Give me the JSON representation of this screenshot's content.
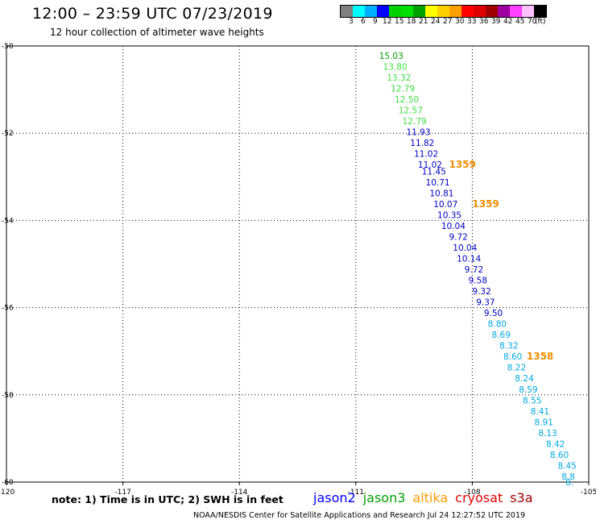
{
  "header": {
    "title": "12:00 – 23:59 UTC 07/23/2019",
    "subtitle": "12 hour collection of altimeter wave heights"
  },
  "colorbar": {
    "colors": [
      "#808080",
      "#00ffff",
      "#00b0ff",
      "#0000ff",
      "#00d000",
      "#00e000",
      "#00a000",
      "#ffff00",
      "#ffd000",
      "#ffa000",
      "#ff0000",
      "#e00000",
      "#a00000",
      "#a000a0",
      "#ff40ff",
      "#ffc0ff",
      "#000000"
    ],
    "labels": [
      "3",
      "6",
      "9",
      "12",
      "15",
      "18",
      "21",
      "24",
      "27",
      "30",
      "33",
      "36",
      "39",
      "42",
      "45",
      "70",
      "(ft)"
    ]
  },
  "chart_data": {
    "type": "scatter",
    "title": "12:00 – 23:59 UTC 07/23/2019",
    "subtitle": "12 hour collection of altimeter wave heights",
    "xlim": [
      -120,
      -105
    ],
    "ylim": [
      -60,
      -50
    ],
    "x_ticks": [
      "-120",
      "-117",
      "-114",
      "-111",
      "-108",
      "-105"
    ],
    "y_ticks": [
      "-50",
      "-52",
      "-54",
      "-56",
      "-58",
      "-60"
    ],
    "grid": true,
    "grid_style": "dotted",
    "points": [
      {
        "lon": -110.4,
        "lat": -50.22,
        "value": "15.03",
        "color": "#00a000"
      },
      {
        "lon": -110.3,
        "lat": -50.47,
        "value": "13.80",
        "color": "#40e040"
      },
      {
        "lon": -110.2,
        "lat": -50.72,
        "value": "13.32",
        "color": "#40e040"
      },
      {
        "lon": -110.1,
        "lat": -50.97,
        "value": "12.79",
        "color": "#40e040"
      },
      {
        "lon": -110.0,
        "lat": -51.22,
        "value": "12.50",
        "color": "#40e040"
      },
      {
        "lon": -109.9,
        "lat": -51.47,
        "value": "12.57",
        "color": "#40e040"
      },
      {
        "lon": -109.8,
        "lat": -51.72,
        "value": "12.79",
        "color": "#40e040"
      },
      {
        "lon": -109.7,
        "lat": -51.97,
        "value": "11.93",
        "color": "#0000c0"
      },
      {
        "lon": -109.6,
        "lat": -52.22,
        "value": "11.82",
        "color": "#0000c0"
      },
      {
        "lon": -109.5,
        "lat": -52.47,
        "value": "11.02",
        "color": "#0000c0"
      },
      {
        "lon": -109.4,
        "lat": -52.72,
        "value": "11.02",
        "color": "#0000c0"
      },
      {
        "lon": -109.3,
        "lat": -52.87,
        "value": "11.45",
        "color": "#0000c0"
      },
      {
        "lon": -109.2,
        "lat": -53.12,
        "value": "10.71",
        "color": "#0000c0"
      },
      {
        "lon": -109.1,
        "lat": -53.37,
        "value": "10.81",
        "color": "#0000c0"
      },
      {
        "lon": -109.0,
        "lat": -53.62,
        "value": "10.07",
        "color": "#0000c0"
      },
      {
        "lon": -108.9,
        "lat": -53.87,
        "value": "10.35",
        "color": "#0000c0"
      },
      {
        "lon": -108.8,
        "lat": -54.12,
        "value": "10.04",
        "color": "#0000c0"
      },
      {
        "lon": -108.6,
        "lat": -54.37,
        "value": "9.72",
        "color": "#0000c0"
      },
      {
        "lon": -108.5,
        "lat": -54.62,
        "value": "10.04",
        "color": "#0000c0"
      },
      {
        "lon": -108.4,
        "lat": -54.87,
        "value": "10.14",
        "color": "#0000c0"
      },
      {
        "lon": -108.2,
        "lat": -55.12,
        "value": "9.72",
        "color": "#0000c0"
      },
      {
        "lon": -108.1,
        "lat": -55.37,
        "value": "9.58",
        "color": "#0000c0"
      },
      {
        "lon": -108.0,
        "lat": -55.62,
        "value": "9.32",
        "color": "#0000c0"
      },
      {
        "lon": -107.9,
        "lat": -55.87,
        "value": "9.37",
        "color": "#0000c0"
      },
      {
        "lon": -107.7,
        "lat": -56.12,
        "value": "9.50",
        "color": "#0000c0"
      },
      {
        "lon": -107.6,
        "lat": -56.37,
        "value": "8.80",
        "color": "#00a8e0"
      },
      {
        "lon": -107.5,
        "lat": -56.62,
        "value": "8.69",
        "color": "#00a8e0"
      },
      {
        "lon": -107.3,
        "lat": -56.87,
        "value": "8.32",
        "color": "#00a8e0"
      },
      {
        "lon": -107.2,
        "lat": -57.12,
        "value": "8.60",
        "color": "#00a8e0"
      },
      {
        "lon": -107.1,
        "lat": -57.37,
        "value": "8.22",
        "color": "#00a8e0"
      },
      {
        "lon": -106.9,
        "lat": -57.62,
        "value": "8.24",
        "color": "#00a8e0"
      },
      {
        "lon": -106.8,
        "lat": -57.87,
        "value": "8.59",
        "color": "#00a8e0"
      },
      {
        "lon": -106.7,
        "lat": -58.12,
        "value": "8.55",
        "color": "#00a8e0"
      },
      {
        "lon": -106.5,
        "lat": -58.37,
        "value": "8.41",
        "color": "#00a8e0"
      },
      {
        "lon": -106.4,
        "lat": -58.62,
        "value": "8.91",
        "color": "#00a8e0"
      },
      {
        "lon": -106.3,
        "lat": -58.87,
        "value": "8.13",
        "color": "#00a8e0"
      },
      {
        "lon": -106.1,
        "lat": -59.12,
        "value": "8.42",
        "color": "#00a8e0"
      },
      {
        "lon": -106.0,
        "lat": -59.37,
        "value": "8.60",
        "color": "#00a8e0"
      },
      {
        "lon": -105.8,
        "lat": -59.62,
        "value": "8.45",
        "color": "#00a8e0"
      },
      {
        "lon": -105.7,
        "lat": -59.87,
        "value": "8.8",
        "color": "#00a8e0"
      },
      {
        "lon": -105.6,
        "lat": -60.0,
        "value": "8.",
        "color": "#00a8e0"
      }
    ],
    "pass_times": [
      {
        "lon": -108.6,
        "lat": -52.72,
        "label": "1359",
        "color": "#f08c00"
      },
      {
        "lon": -108.0,
        "lat": -53.62,
        "label": "1359",
        "color": "#f08c00"
      },
      {
        "lon": -106.6,
        "lat": -57.12,
        "label": "1358",
        "color": "#f08c00"
      }
    ]
  },
  "note": "note: 1) Time is in UTC; 2) SWH is in feet",
  "satellites": [
    {
      "name": "jason2",
      "color": "#0000ff"
    },
    {
      "name": "jason3",
      "color": "#00a000"
    },
    {
      "name": "altika",
      "color": "#ff9a00"
    },
    {
      "name": "cryosat",
      "color": "#e00000"
    },
    {
      "name": "s3a",
      "color": "#a00000"
    }
  ],
  "footer": "NOAA/NESDIS Center for Satellite Applications and Research   Jul 24 12:27:52 UTC 2019"
}
